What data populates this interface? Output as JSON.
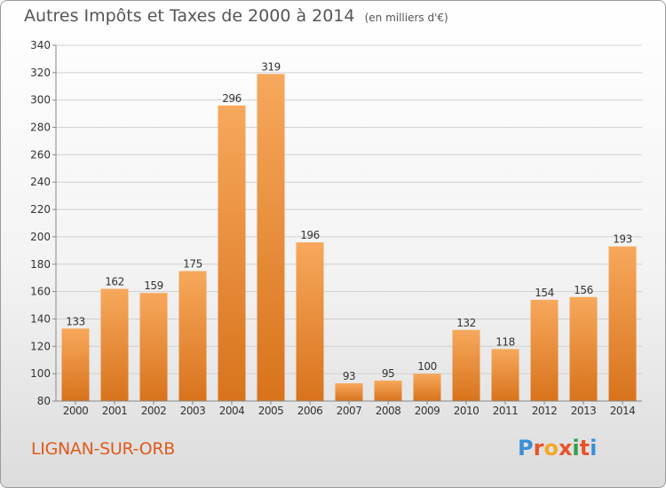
{
  "header": {
    "title": "Autres Impôts et Taxes de 2000 à 2014",
    "unit": "(en milliers d'€)"
  },
  "footer": {
    "commune": "LIGNAN-SUR-ORB",
    "logo_letters": [
      "P",
      "r",
      "o",
      "x",
      "i",
      "t",
      "i"
    ],
    "logo_colors": [
      "#3b8fd6",
      "#e8542a",
      "#f4a72a",
      "#e8542a",
      "#2e9e4a",
      "#e8542a",
      "#3b8fd6"
    ]
  },
  "colors": {
    "bar_light": "#f7a85c",
    "bar_dark": "#d8731c",
    "grid": "#d0d0d0",
    "axis_text": "#333333"
  },
  "chart_data": {
    "type": "bar",
    "title": "Autres Impôts et Taxes de 2000 à 2014",
    "subtitle": "(en milliers d'€)",
    "categories": [
      "2000",
      "2001",
      "2002",
      "2003",
      "2004",
      "2005",
      "2006",
      "2007",
      "2008",
      "2009",
      "2010",
      "2011",
      "2012",
      "2013",
      "2014"
    ],
    "values": [
      133,
      162,
      159,
      175,
      296,
      319,
      196,
      93,
      95,
      100,
      132,
      118,
      154,
      156,
      193
    ],
    "ylim": [
      80,
      340
    ],
    "yticks": [
      80,
      100,
      120,
      140,
      160,
      180,
      200,
      220,
      240,
      260,
      280,
      300,
      320,
      340
    ],
    "grid": true,
    "data_labels": true
  }
}
